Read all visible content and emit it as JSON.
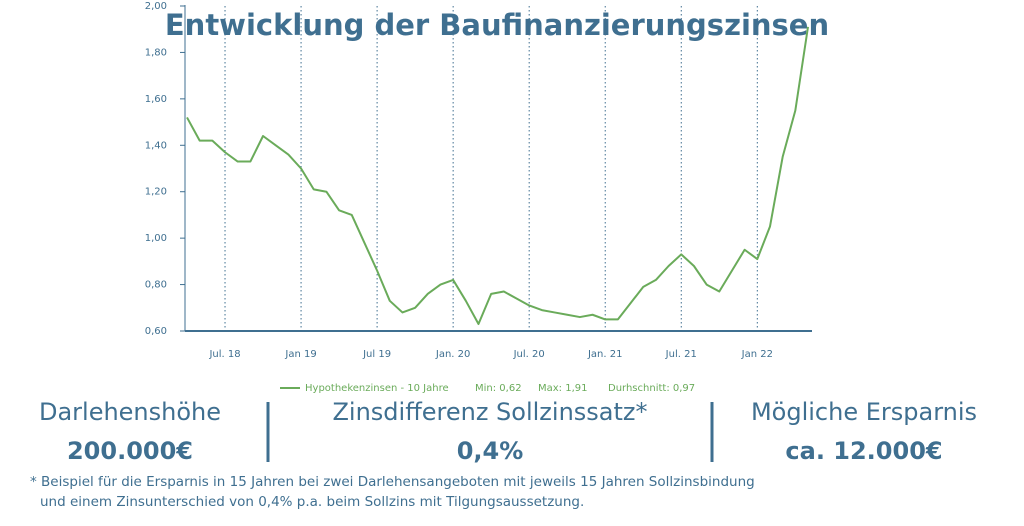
{
  "chart_data": {
    "type": "line",
    "title": "Entwicklung der Baufinanzierungszinsen",
    "x": [
      "2018-04",
      "2018-05",
      "2018-06",
      "2018-07",
      "2018-08",
      "2018-09",
      "2018-10",
      "2018-11",
      "2018-12",
      "2019-01",
      "2019-02",
      "2019-03",
      "2019-04",
      "2019-05",
      "2019-06",
      "2019-07",
      "2019-08",
      "2019-09",
      "2019-10",
      "2019-11",
      "2019-12",
      "2020-01",
      "2020-02",
      "2020-03",
      "2020-04",
      "2020-05",
      "2020-06",
      "2020-07",
      "2020-08",
      "2020-09",
      "2020-10",
      "2020-11",
      "2020-12",
      "2021-01",
      "2021-02",
      "2021-03",
      "2021-04",
      "2021-05",
      "2021-06",
      "2021-07",
      "2021-08",
      "2021-09",
      "2021-10",
      "2021-11",
      "2021-12",
      "2022-01",
      "2022-02",
      "2022-03",
      "2022-04",
      "2022-05"
    ],
    "series": [
      {
        "name": "Hypothekenzinsen - 10 Jahre",
        "color": "#6aab5a",
        "values": [
          1.52,
          1.42,
          1.42,
          1.37,
          1.33,
          1.33,
          1.44,
          1.4,
          1.36,
          1.3,
          1.21,
          1.2,
          1.12,
          1.1,
          0.98,
          0.86,
          0.73,
          0.68,
          0.7,
          0.76,
          0.8,
          0.82,
          0.73,
          0.63,
          0.76,
          0.77,
          0.74,
          0.71,
          0.69,
          0.68,
          0.67,
          0.66,
          0.67,
          0.65,
          0.65,
          0.72,
          0.79,
          0.82,
          0.88,
          0.93,
          0.88,
          0.8,
          0.77,
          0.86,
          0.95,
          0.91,
          1.05,
          1.35,
          1.55,
          1.91
        ]
      }
    ],
    "legend_stats": [
      "Min: 0,62",
      "Max: 1,91",
      "Durhschnitt: 0,97"
    ],
    "xlim": [
      "2018-04",
      "2022-05"
    ],
    "xticks": [
      {
        "value": "2018-07",
        "label": "Jul. 18"
      },
      {
        "value": "2019-01",
        "label": "Jan 19"
      },
      {
        "value": "2019-07",
        "label": "Jul 19"
      },
      {
        "value": "2020-01",
        "label": "Jan. 20"
      },
      {
        "value": "2020-07",
        "label": "Jul. 20"
      },
      {
        "value": "2021-01",
        "label": "Jan. 21"
      },
      {
        "value": "2021-07",
        "label": "Jul. 21"
      },
      {
        "value": "2022-01",
        "label": "Jan 22"
      }
    ],
    "ylim": [
      0.6,
      2.0
    ],
    "yticks": [
      {
        "value": 0.6,
        "label": "0,60"
      },
      {
        "value": 0.8,
        "label": "0,80"
      },
      {
        "value": 1.0,
        "label": "1,00"
      },
      {
        "value": 1.2,
        "label": "1,20"
      },
      {
        "value": 1.4,
        "label": "1,40"
      },
      {
        "value": 1.6,
        "label": "1,60"
      },
      {
        "value": 1.8,
        "label": "1,80"
      },
      {
        "value": 2.0,
        "label": "2,00"
      }
    ],
    "grid": true
  },
  "panels": [
    {
      "label": "Darlehenshöhe",
      "value": "200.000€"
    },
    {
      "label": "Zinsdifferenz Sollzinssatz*",
      "value": "0,4%"
    },
    {
      "label": "Mögliche Ersparnis",
      "value": "ca. 12.000€"
    }
  ],
  "footnote": [
    "* Beispiel für die Ersparnis in 15 Jahren bei zwei Darlehensangeboten mit jeweils 15 Jahren Sollzinsbindung",
    "und einem Zinsunterschied von 0,4% p.a. beim Sollzins mit Tilgungsaussetzung."
  ]
}
